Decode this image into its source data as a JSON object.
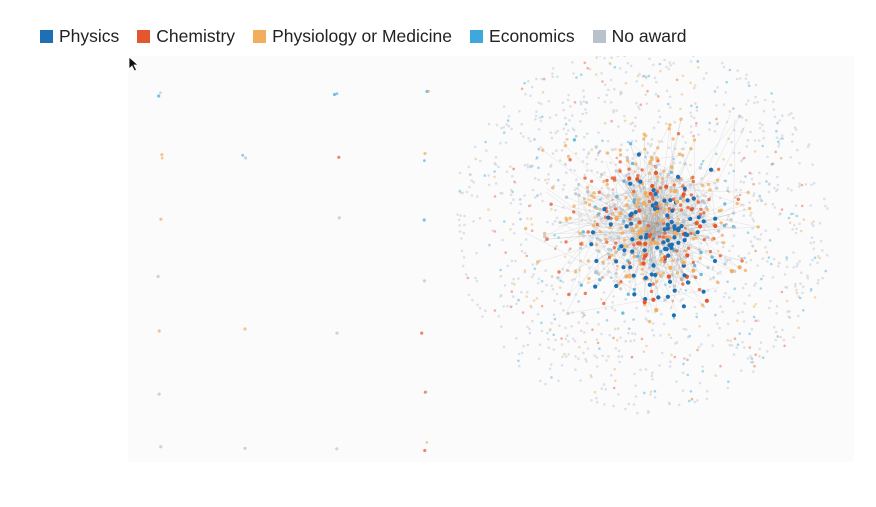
{
  "legend": [
    {
      "key": "physics",
      "label": "Physics",
      "color": "#1f6fb5"
    },
    {
      "key": "chemistry",
      "label": "Chemistry",
      "color": "#e4572e"
    },
    {
      "key": "physiology_or_medicine",
      "label": "Physiology or Medicine",
      "color": "#f0ae5e"
    },
    {
      "key": "economics",
      "label": "Economics",
      "color": "#3ea8dd"
    },
    {
      "key": "no_award",
      "label": "No award",
      "color": "#b9c2cc"
    }
  ],
  "link_color": "#9a9a9a",
  "icons": {
    "cursor": "mouse-pointer-icon"
  }
}
